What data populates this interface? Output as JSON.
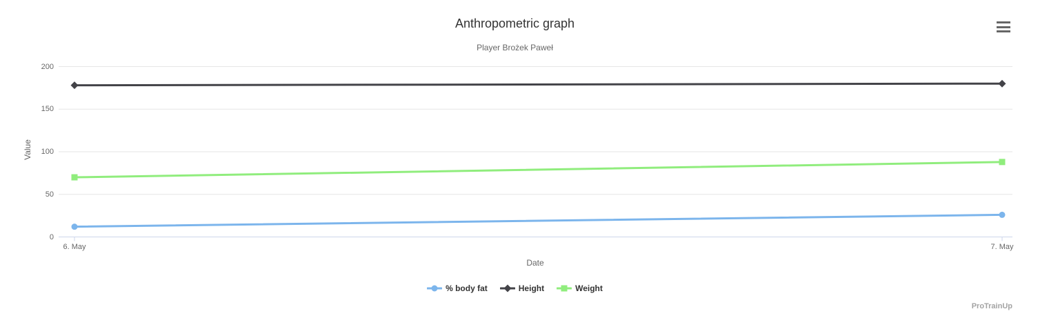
{
  "chart_data": {
    "type": "line",
    "title": "Anthropometric graph",
    "subtitle": "Player Brożek Paweł",
    "xlabel": "Date",
    "ylabel": "Value",
    "categories": [
      "6. May",
      "7. May"
    ],
    "ylim": [
      0,
      200
    ],
    "y_ticks": [
      0,
      50,
      100,
      150,
      200
    ],
    "grid": true,
    "legend_position": "bottom-center",
    "series": [
      {
        "name": "% body fat",
        "color": "#7cb5ec",
        "marker": "circle",
        "values": [
          12,
          26
        ]
      },
      {
        "name": "Height",
        "color": "#434348",
        "marker": "diamond",
        "values": [
          178,
          180
        ]
      },
      {
        "name": "Weight",
        "color": "#90ed7d",
        "marker": "square",
        "values": [
          70,
          88
        ]
      }
    ]
  },
  "toolbar": {
    "menu_icon": "hamburger-menu-icon"
  },
  "watermark": "ProTrainUp",
  "colors": {
    "background": "#ffffff",
    "grid": "#e6e6e6",
    "axis_line": "#ccd6eb",
    "tick_label": "#666666",
    "title": "#333333",
    "subtitle": "#666666",
    "legend_text": "#333333",
    "menu_icon": "#666666",
    "watermark": "#a3a3a3"
  }
}
